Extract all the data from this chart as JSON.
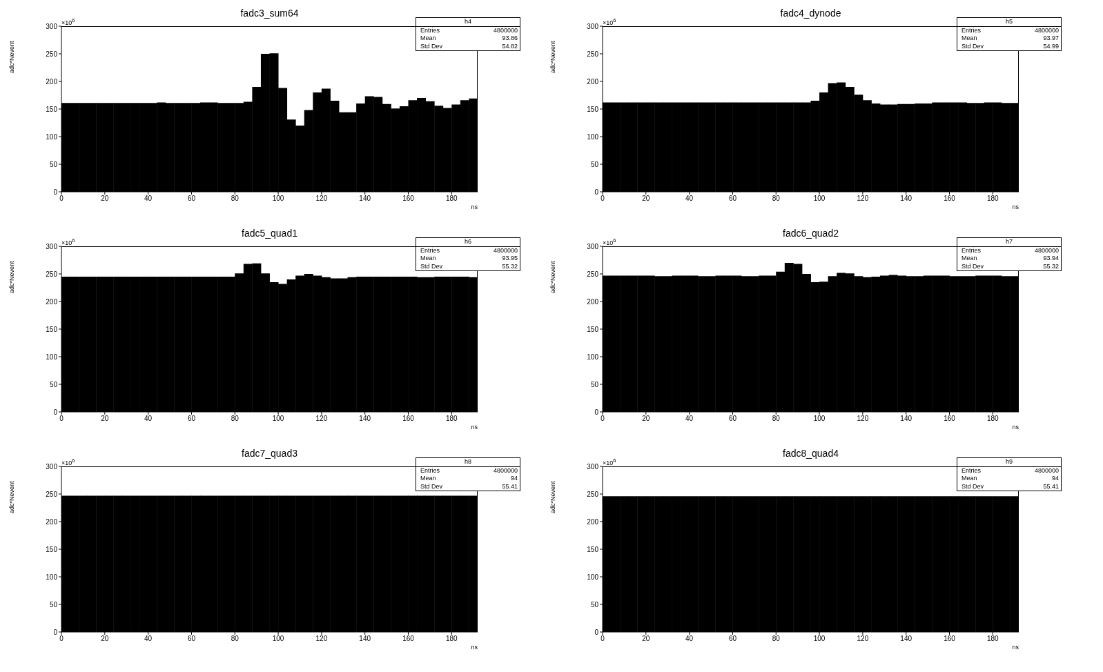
{
  "chart_data": [
    {
      "type": "histogram",
      "title": "fadc3_sum64",
      "ylabel": "adc*Nevent",
      "xlabel": "ns",
      "annotations": [
        "×10$^{6}$",
        "h4",
        "Entries",
        "4800000",
        "Mean",
        "93.86",
        "Std Dev",
        "54.82"
      ],
      "color": "#000000",
      "xlim": [
        0,
        192
      ],
      "xticks": [
        0,
        20,
        40,
        60,
        80,
        100,
        120,
        140,
        160,
        180
      ],
      "ylim": [
        0,
        300
      ],
      "yticks": [
        0,
        50,
        100,
        150,
        200,
        250,
        300
      ],
      "bins": [
        0,
        4,
        8,
        12,
        16,
        20,
        24,
        28,
        32,
        36,
        40,
        44,
        48,
        52,
        56,
        60,
        64,
        68,
        72,
        76,
        80,
        84,
        88,
        92,
        96,
        100,
        104,
        108,
        112,
        116,
        120,
        124,
        128,
        132,
        136,
        140,
        144,
        148,
        152,
        156,
        160,
        164,
        168,
        172,
        176,
        180,
        184,
        188,
        192
      ],
      "values": [
        161,
        161,
        161,
        161,
        161,
        161,
        161,
        161,
        161,
        161,
        161,
        162,
        161,
        161,
        161,
        161,
        162,
        162,
        161,
        161,
        161,
        163,
        190,
        250,
        251,
        188,
        131,
        120,
        148,
        180,
        187,
        165,
        144,
        144,
        160,
        173,
        172,
        159,
        151,
        155,
        166,
        170,
        164,
        156,
        152,
        158,
        166,
        169
      ]
    },
    {
      "type": "histogram",
      "title": "fadc4_dynode",
      "ylabel": "adc*Nevent",
      "xlabel": "ns",
      "annotations": [
        "×10$^{6}$",
        "h5",
        "Entries",
        "4800000",
        "Mean",
        "93.97",
        "Std Dev",
        "54.99"
      ],
      "color": "#000000",
      "xlim": [
        0,
        192
      ],
      "xticks": [
        0,
        20,
        40,
        60,
        80,
        100,
        120,
        140,
        160,
        180
      ],
      "ylim": [
        0,
        300
      ],
      "yticks": [
        0,
        50,
        100,
        150,
        200,
        250,
        300
      ],
      "bins": [
        0,
        4,
        8,
        12,
        16,
        20,
        24,
        28,
        32,
        36,
        40,
        44,
        48,
        52,
        56,
        60,
        64,
        68,
        72,
        76,
        80,
        84,
        88,
        92,
        96,
        100,
        104,
        108,
        112,
        116,
        120,
        124,
        128,
        132,
        136,
        140,
        144,
        148,
        152,
        156,
        160,
        164,
        168,
        172,
        176,
        180,
        184,
        188,
        192
      ],
      "values": [
        162,
        162,
        162,
        162,
        162,
        162,
        162,
        162,
        162,
        162,
        162,
        162,
        162,
        162,
        162,
        162,
        162,
        162,
        162,
        162,
        162,
        162,
        162,
        162,
        165,
        180,
        197,
        198,
        190,
        176,
        166,
        160,
        158,
        158,
        159,
        159,
        160,
        160,
        162,
        162,
        162,
        162,
        161,
        161,
        162,
        162,
        161,
        161
      ]
    },
    {
      "type": "histogram",
      "title": "fadc5_quad1",
      "ylabel": "adc*Nevent",
      "xlabel": "ns",
      "annotations": [
        "×10$^{6}$",
        "h6",
        "Entries",
        "4800000",
        "Mean",
        "93.95",
        "Std Dev",
        "55.32"
      ],
      "color": "#000000",
      "xlim": [
        0,
        192
      ],
      "xticks": [
        0,
        20,
        40,
        60,
        80,
        100,
        120,
        140,
        160,
        180
      ],
      "ylim": [
        0,
        300
      ],
      "yticks": [
        0,
        50,
        100,
        150,
        200,
        250,
        300
      ],
      "bins": [
        0,
        4,
        8,
        12,
        16,
        20,
        24,
        28,
        32,
        36,
        40,
        44,
        48,
        52,
        56,
        60,
        64,
        68,
        72,
        76,
        80,
        84,
        88,
        92,
        96,
        100,
        104,
        108,
        112,
        116,
        120,
        124,
        128,
        132,
        136,
        140,
        144,
        148,
        152,
        156,
        160,
        164,
        168,
        172,
        176,
        180,
        184,
        188,
        192
      ],
      "values": [
        245,
        245,
        245,
        245,
        245,
        245,
        245,
        245,
        245,
        245,
        245,
        245,
        245,
        245,
        245,
        245,
        245,
        245,
        245,
        245,
        251,
        268,
        269,
        251,
        235,
        232,
        240,
        247,
        250,
        247,
        244,
        242,
        242,
        244,
        245,
        245,
        245,
        245,
        245,
        245,
        245,
        244,
        244,
        245,
        245,
        245,
        245,
        244
      ]
    },
    {
      "type": "histogram",
      "title": "fadc6_quad2",
      "ylabel": "adc*Nevent",
      "xlabel": "ns",
      "annotations": [
        "×10$^{6}$",
        "h7",
        "Entries",
        "4800000",
        "Mean",
        "93.94",
        "Std Dev",
        "55.32"
      ],
      "color": "#000000",
      "xlim": [
        0,
        192
      ],
      "xticks": [
        0,
        20,
        40,
        60,
        80,
        100,
        120,
        140,
        160,
        180
      ],
      "ylim": [
        0,
        300
      ],
      "yticks": [
        0,
        50,
        100,
        150,
        200,
        250,
        300
      ],
      "bins": [
        0,
        4,
        8,
        12,
        16,
        20,
        24,
        28,
        32,
        36,
        40,
        44,
        48,
        52,
        56,
        60,
        64,
        68,
        72,
        76,
        80,
        84,
        88,
        92,
        96,
        100,
        104,
        108,
        112,
        116,
        120,
        124,
        128,
        132,
        136,
        140,
        144,
        148,
        152,
        156,
        160,
        164,
        168,
        172,
        176,
        180,
        184,
        188,
        192
      ],
      "values": [
        247,
        247,
        247,
        247,
        247,
        247,
        246,
        246,
        247,
        247,
        247,
        246,
        246,
        247,
        247,
        247,
        246,
        246,
        247,
        247,
        254,
        270,
        268,
        250,
        235,
        236,
        246,
        252,
        251,
        246,
        244,
        245,
        247,
        248,
        247,
        246,
        246,
        247,
        247,
        247,
        246,
        246,
        246,
        247,
        247,
        247,
        246,
        246
      ]
    },
    {
      "type": "histogram",
      "title": "fadc7_quad3",
      "ylabel": "adc*Nevent",
      "xlabel": "ns",
      "annotations": [
        "×10$^{6}$",
        "h8",
        "Entries",
        "4800000",
        "Mean",
        "94",
        "Std Dev",
        "55.41"
      ],
      "color": "#000000",
      "xlim": [
        0,
        192
      ],
      "xticks": [
        0,
        20,
        40,
        60,
        80,
        100,
        120,
        140,
        160,
        180
      ],
      "ylim": [
        0,
        300
      ],
      "yticks": [
        0,
        50,
        100,
        150,
        200,
        250,
        300
      ],
      "bins": [
        0,
        4,
        8,
        12,
        16,
        20,
        24,
        28,
        32,
        36,
        40,
        44,
        48,
        52,
        56,
        60,
        64,
        68,
        72,
        76,
        80,
        84,
        88,
        92,
        96,
        100,
        104,
        108,
        112,
        116,
        120,
        124,
        128,
        132,
        136,
        140,
        144,
        148,
        152,
        156,
        160,
        164,
        168,
        172,
        176,
        180,
        184,
        188,
        192
      ],
      "values": [
        247,
        247,
        247,
        247,
        247,
        247,
        247,
        247,
        247,
        247,
        247,
        247,
        247,
        247,
        247,
        247,
        247,
        247,
        247,
        247,
        247,
        247,
        247,
        247,
        247,
        247,
        247,
        247,
        247,
        247,
        247,
        247,
        247,
        247,
        247,
        247,
        247,
        247,
        247,
        247,
        247,
        247,
        247,
        247,
        247,
        247,
        247,
        247
      ]
    },
    {
      "type": "histogram",
      "title": "fadc8_quad4",
      "ylabel": "adc*Nevent",
      "xlabel": "ns",
      "annotations": [
        "×10$^{6}$",
        "h9",
        "Entries",
        "4800000",
        "Mean",
        "94",
        "Std Dev",
        "55.41"
      ],
      "color": "#000000",
      "xlim": [
        0,
        192
      ],
      "xticks": [
        0,
        20,
        40,
        60,
        80,
        100,
        120,
        140,
        160,
        180
      ],
      "ylim": [
        0,
        300
      ],
      "yticks": [
        0,
        50,
        100,
        150,
        200,
        250,
        300
      ],
      "bins": [
        0,
        4,
        8,
        12,
        16,
        20,
        24,
        28,
        32,
        36,
        40,
        44,
        48,
        52,
        56,
        60,
        64,
        68,
        72,
        76,
        80,
        84,
        88,
        92,
        96,
        100,
        104,
        108,
        112,
        116,
        120,
        124,
        128,
        132,
        136,
        140,
        144,
        148,
        152,
        156,
        160,
        164,
        168,
        172,
        176,
        180,
        184,
        188,
        192
      ],
      "values": [
        246,
        246,
        246,
        246,
        246,
        246,
        246,
        246,
        246,
        246,
        246,
        246,
        246,
        246,
        246,
        246,
        246,
        246,
        246,
        246,
        246,
        246,
        246,
        246,
        246,
        246,
        246,
        246,
        246,
        246,
        246,
        246,
        246,
        246,
        246,
        246,
        246,
        246,
        246,
        246,
        246,
        246,
        246,
        246,
        246,
        246,
        246,
        246
      ]
    }
  ]
}
